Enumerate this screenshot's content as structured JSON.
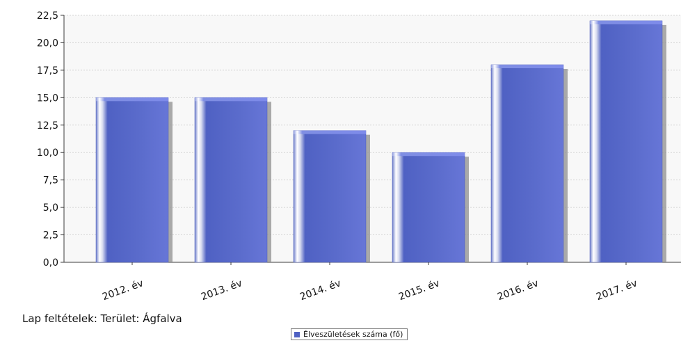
{
  "chart_data": {
    "type": "bar",
    "categories": [
      "2012. év",
      "2013. év",
      "2014. év",
      "2015. év",
      "2016. év",
      "2017. év"
    ],
    "series": [
      {
        "name": "Élveszületések száma (fő)",
        "values": [
          15,
          15,
          12,
          10,
          18,
          22
        ]
      }
    ],
    "yticks": [
      "0,0",
      "2,5",
      "5,0",
      "7,5",
      "10,0",
      "12,5",
      "15,0",
      "17,5",
      "20,0",
      "22,5"
    ],
    "ylim": [
      0,
      22.5
    ],
    "grid": true,
    "legend_position": "bottom-center",
    "colors": {
      "bar": "#4f61c3",
      "shadow": "#8f8f8f",
      "plot_bg": "#f8f8f8",
      "grid": "#d5d5d5",
      "axis": "#3b3b3b"
    }
  },
  "page_caption": "Lap feltételek: Terület: Ágfalva"
}
